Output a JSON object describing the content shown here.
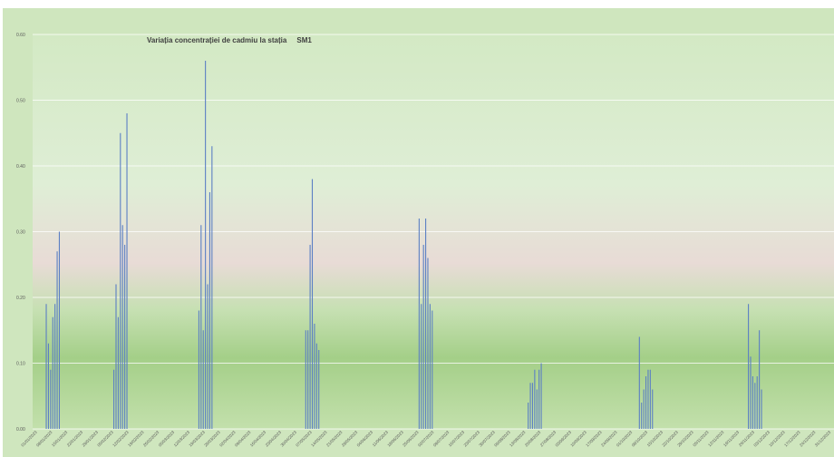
{
  "chart_data": {
    "type": "bar",
    "title": "Variația concentrației de cadmiu la stația     SM1",
    "xlabel": "",
    "ylabel": "",
    "ylim": [
      0,
      0.6
    ],
    "yticks": [
      "0.00",
      "0.10",
      "0.20",
      "0.30",
      "0.40",
      "0.50",
      "0.60"
    ],
    "grid": true,
    "legend": "none",
    "colors": {
      "bar": "#5b7fc4",
      "grid": "#ffffff",
      "plot_top": "#d6ebc9",
      "plot_mid": "#e6dcd6",
      "plot_low": "#a8d08d",
      "frame": "#c9e2b8"
    },
    "categories": [
      "01/01/2023",
      "08/01/2023",
      "15/01/2023",
      "22/01/2023",
      "29/01/2023",
      "05/02/2023",
      "12/02/2023",
      "19/02/2023",
      "26/02/2023",
      "05/03/2023",
      "12/03/2023",
      "19/03/2023",
      "26/03/2023",
      "02/04/2023",
      "09/04/2023",
      "16/04/2023",
      "23/04/2023",
      "30/04/2023",
      "07/05/2023",
      "14/05/2023",
      "21/05/2023",
      "28/05/2023",
      "04/06/2023",
      "11/06/2023",
      "18/06/2023",
      "25/06/2023",
      "02/07/2023",
      "09/07/2023",
      "16/07/2023",
      "23/07/2023",
      "30/07/2023",
      "06/08/2023",
      "13/08/2023",
      "20/08/2023",
      "27/08/2023",
      "03/09/2023",
      "10/09/2023",
      "17/09/2023",
      "24/09/2023",
      "01/10/2023",
      "08/10/2023",
      "15/10/2023",
      "22/10/2023",
      "29/10/2023",
      "05/11/2023",
      "12/11/2023",
      "19/11/2023",
      "26/11/2023",
      "03/12/2023",
      "10/12/2023",
      "17/12/2023",
      "24/12/2023",
      "31/12/2023"
    ],
    "series": [
      {
        "points": [
          {
            "day": 5,
            "value": 0.19
          },
          {
            "day": 6,
            "value": 0.13
          },
          {
            "day": 7,
            "value": 0.09
          },
          {
            "day": 8,
            "value": 0.17
          },
          {
            "day": 9,
            "value": 0.19
          },
          {
            "day": 10,
            "value": 0.27
          },
          {
            "day": 11,
            "value": 0.3
          },
          {
            "day": 36,
            "value": 0.09
          },
          {
            "day": 37,
            "value": 0.22
          },
          {
            "day": 38,
            "value": 0.17
          },
          {
            "day": 39,
            "value": 0.45
          },
          {
            "day": 40,
            "value": 0.31
          },
          {
            "day": 41,
            "value": 0.28
          },
          {
            "day": 42,
            "value": 0.48
          },
          {
            "day": 75,
            "value": 0.18
          },
          {
            "day": 76,
            "value": 0.31
          },
          {
            "day": 77,
            "value": 0.15
          },
          {
            "day": 78,
            "value": 0.56
          },
          {
            "day": 79,
            "value": 0.22
          },
          {
            "day": 80,
            "value": 0.36
          },
          {
            "day": 81,
            "value": 0.43
          },
          {
            "day": 124,
            "value": 0.15
          },
          {
            "day": 125,
            "value": 0.15
          },
          {
            "day": 126,
            "value": 0.28
          },
          {
            "day": 127,
            "value": 0.38
          },
          {
            "day": 128,
            "value": 0.16
          },
          {
            "day": 129,
            "value": 0.13
          },
          {
            "day": 130,
            "value": 0.12
          },
          {
            "day": 176,
            "value": 0.32
          },
          {
            "day": 177,
            "value": 0.19
          },
          {
            "day": 178,
            "value": 0.28
          },
          {
            "day": 179,
            "value": 0.32
          },
          {
            "day": 180,
            "value": 0.26
          },
          {
            "day": 181,
            "value": 0.19
          },
          {
            "day": 182,
            "value": 0.18
          },
          {
            "day": 226,
            "value": 0.04
          },
          {
            "day": 227,
            "value": 0.07
          },
          {
            "day": 228,
            "value": 0.07
          },
          {
            "day": 229,
            "value": 0.09
          },
          {
            "day": 230,
            "value": 0.06
          },
          {
            "day": 231,
            "value": 0.09
          },
          {
            "day": 232,
            "value": 0.1
          },
          {
            "day": 277,
            "value": 0.14
          },
          {
            "day": 278,
            "value": 0.04
          },
          {
            "day": 279,
            "value": 0.06
          },
          {
            "day": 280,
            "value": 0.08
          },
          {
            "day": 281,
            "value": 0.09
          },
          {
            "day": 282,
            "value": 0.09
          },
          {
            "day": 283,
            "value": 0.06
          },
          {
            "day": 327,
            "value": 0.19
          },
          {
            "day": 328,
            "value": 0.11
          },
          {
            "day": 329,
            "value": 0.08
          },
          {
            "day": 330,
            "value": 0.07
          },
          {
            "day": 331,
            "value": 0.08
          },
          {
            "day": 332,
            "value": 0.15
          },
          {
            "day": 333,
            "value": 0.06
          }
        ]
      }
    ]
  }
}
